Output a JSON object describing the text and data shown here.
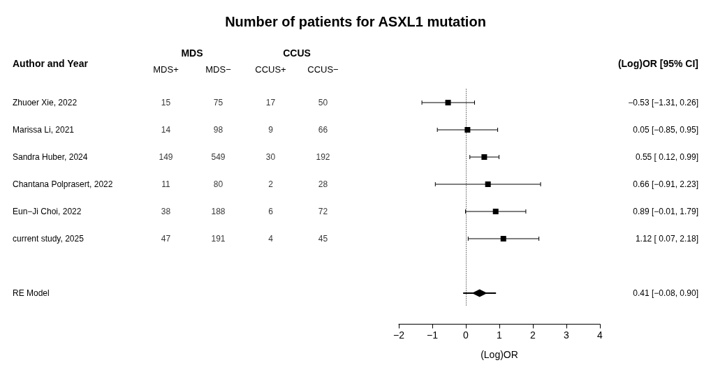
{
  "chart_data": [
    {
      "type": "other",
      "title": "Number of patients for ASXL1 mutation",
      "ylabel": "Author and Year",
      "categories": [
        "Zhuoer Xie, 2022",
        "Marissa Li, 2021",
        "Sandra Huber, 2024",
        "Chantana Polprasert, 2022",
        "Eun−Ji Choi, 2022",
        "current study, 2025",
        null,
        "RE Model"
      ],
      "series": [
        {
          "name": "MDS+",
          "values": [
            15,
            14,
            149,
            11,
            38,
            47,
            null,
            null
          ]
        },
        {
          "name": "MDS−",
          "values": [
            75,
            98,
            549,
            80,
            188,
            191,
            null,
            null
          ]
        },
        {
          "name": "CCUS+",
          "values": [
            17,
            9,
            30,
            2,
            6,
            4,
            null,
            null
          ]
        },
        {
          "name": "CCUS−",
          "values": [
            50,
            66,
            192,
            28,
            72,
            45,
            null,
            null
          ]
        }
      ],
      "annotations": [
        "MDS",
        "CCUS"
      ],
      "data_labels": true
    },
    {
      "type": "scatter",
      "orientation": "horizontal",
      "xlabel": "(Log)OR",
      "y2label": "(Log)OR [95% CI]",
      "categories": [
        "−0.53 [−1.31, 0.26]",
        "0.05 [−0.85, 0.95]",
        "0.55 [ 0.12, 0.99]",
        "0.66 [−0.91, 2.23]",
        "0.89 [−0.01, 1.79]",
        "1.12 [ 0.07, 2.18]",
        null,
        "0.41 [−0.08, 0.90]"
      ],
      "series": [
        {
          "color": "#000000",
          "marker": "square",
          "values": [
            -0.53,
            0.05,
            0.55,
            0.66,
            0.89,
            1.12,
            null,
            null
          ],
          "errors": [
            [
              -1.31,
              0.26
            ],
            [
              -0.85,
              0.95
            ],
            [
              0.12,
              0.99
            ],
            [
              -0.91,
              2.23
            ],
            [
              -0.01,
              1.79
            ],
            [
              0.07,
              2.18
            ],
            null,
            null
          ]
        },
        {
          "color": "#000000",
          "marker": "diamond",
          "values": [
            null,
            null,
            null,
            null,
            null,
            null,
            null,
            0.41
          ],
          "errors": [
            null,
            null,
            null,
            null,
            null,
            null,
            null,
            [
              -0.08,
              0.9
            ]
          ]
        }
      ],
      "xlim": [
        -2,
        4
      ],
      "xticks": [
        {
          "value": -2,
          "label": "−2"
        },
        {
          "value": -1,
          "label": "−1"
        },
        0,
        1,
        2,
        3,
        4
      ],
      "ref_lines": [
        {
          "axis": "x",
          "value": 0,
          "line_style": "dotted",
          "color": "#000000"
        }
      ],
      "grid": false
    }
  ]
}
